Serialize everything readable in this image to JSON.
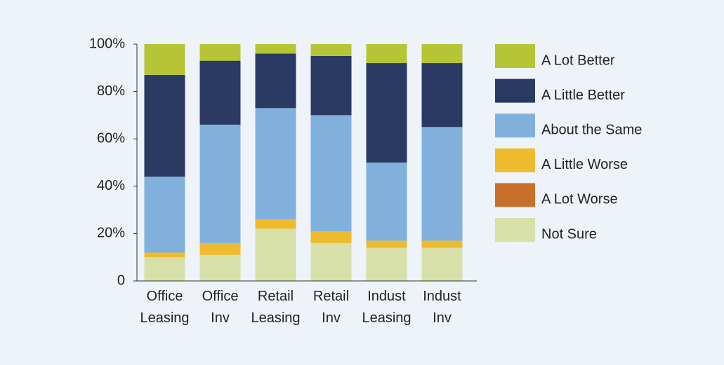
{
  "chart_data": {
    "type": "stacked_bar",
    "categories": [
      "Office Leasing",
      "Office Inv",
      "Retail Leasing",
      "Retail Inv",
      "Indust Leasing",
      "Indust Inv"
    ],
    "series": [
      {
        "name": "Not Sure",
        "color": "#d7e0a8",
        "values": [
          10,
          11,
          22,
          16,
          14,
          14
        ]
      },
      {
        "name": "A Lot Worse",
        "color": "#c8702a",
        "values": [
          0,
          0,
          0,
          0,
          0,
          0
        ]
      },
      {
        "name": "A Little Worse",
        "color": "#eebb2f",
        "values": [
          2,
          5,
          4,
          5,
          3,
          3
        ]
      },
      {
        "name": "About the Same",
        "color": "#82b0dc",
        "values": [
          32,
          50,
          47,
          49,
          33,
          48
        ]
      },
      {
        "name": "A Little Better",
        "color": "#2b3a63",
        "values": [
          43,
          27,
          23,
          25,
          42,
          27
        ]
      },
      {
        "name": "A Lot Better",
        "color": "#b5c535",
        "values": [
          13,
          7,
          4,
          5,
          8,
          8
        ]
      }
    ],
    "ylim": [
      0,
      100
    ],
    "yticks": [
      0,
      {
        "value": 20,
        "label": "20%"
      },
      {
        "value": 40,
        "label": "40%"
      },
      {
        "value": 60,
        "label": "60%"
      },
      {
        "value": 80,
        "label": "80%"
      },
      {
        "value": 100,
        "label": "100%"
      }
    ],
    "legend": "right"
  }
}
